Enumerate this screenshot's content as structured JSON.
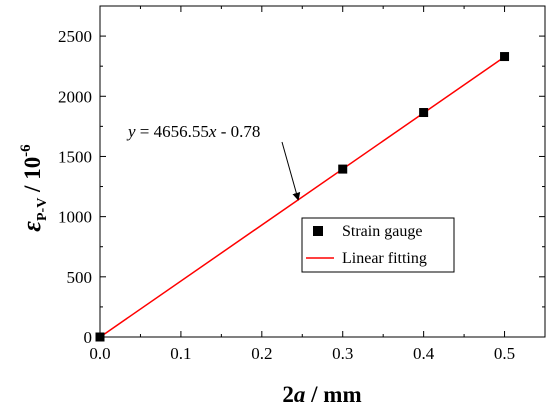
{
  "chart_data": {
    "type": "scatter",
    "x_ticks": [
      "0.0",
      "0.1",
      "0.2",
      "0.3",
      "0.4",
      "0.5"
    ],
    "y_ticks": [
      "0",
      "500",
      "1000",
      "1500",
      "2000",
      "2500"
    ],
    "xlim": [
      0.0,
      0.55
    ],
    "ylim": [
      0,
      2750
    ],
    "xlabel": {
      "main": "2",
      "var": "a",
      "rest": " / mm"
    },
    "ylabel": {
      "symbol": "ε",
      "sub": "P-V",
      "unit": " / 10",
      "exp": "-6"
    },
    "series": [
      {
        "name": "Strain gauge",
        "type": "scatter",
        "marker": "square",
        "color": "#000000",
        "points": [
          {
            "x": 0.0,
            "y": 0
          },
          {
            "x": 0.3,
            "y": 1395
          },
          {
            "x": 0.4,
            "y": 1865
          },
          {
            "x": 0.5,
            "y": 2330
          }
        ]
      },
      {
        "name": "Linear fitting",
        "type": "line",
        "color": "#ff0000",
        "slope": 4656.55,
        "intercept": -0.78,
        "x_range": [
          0.0,
          0.5
        ]
      }
    ],
    "annotation": {
      "prefix": "y",
      "middle": " = 4656.55",
      "var": "x",
      "suffix": " - 0.78",
      "arrow_target": {
        "x": 0.245,
        "y": 1140
      }
    },
    "legend": {
      "placement": "center-right"
    },
    "grid": false
  }
}
